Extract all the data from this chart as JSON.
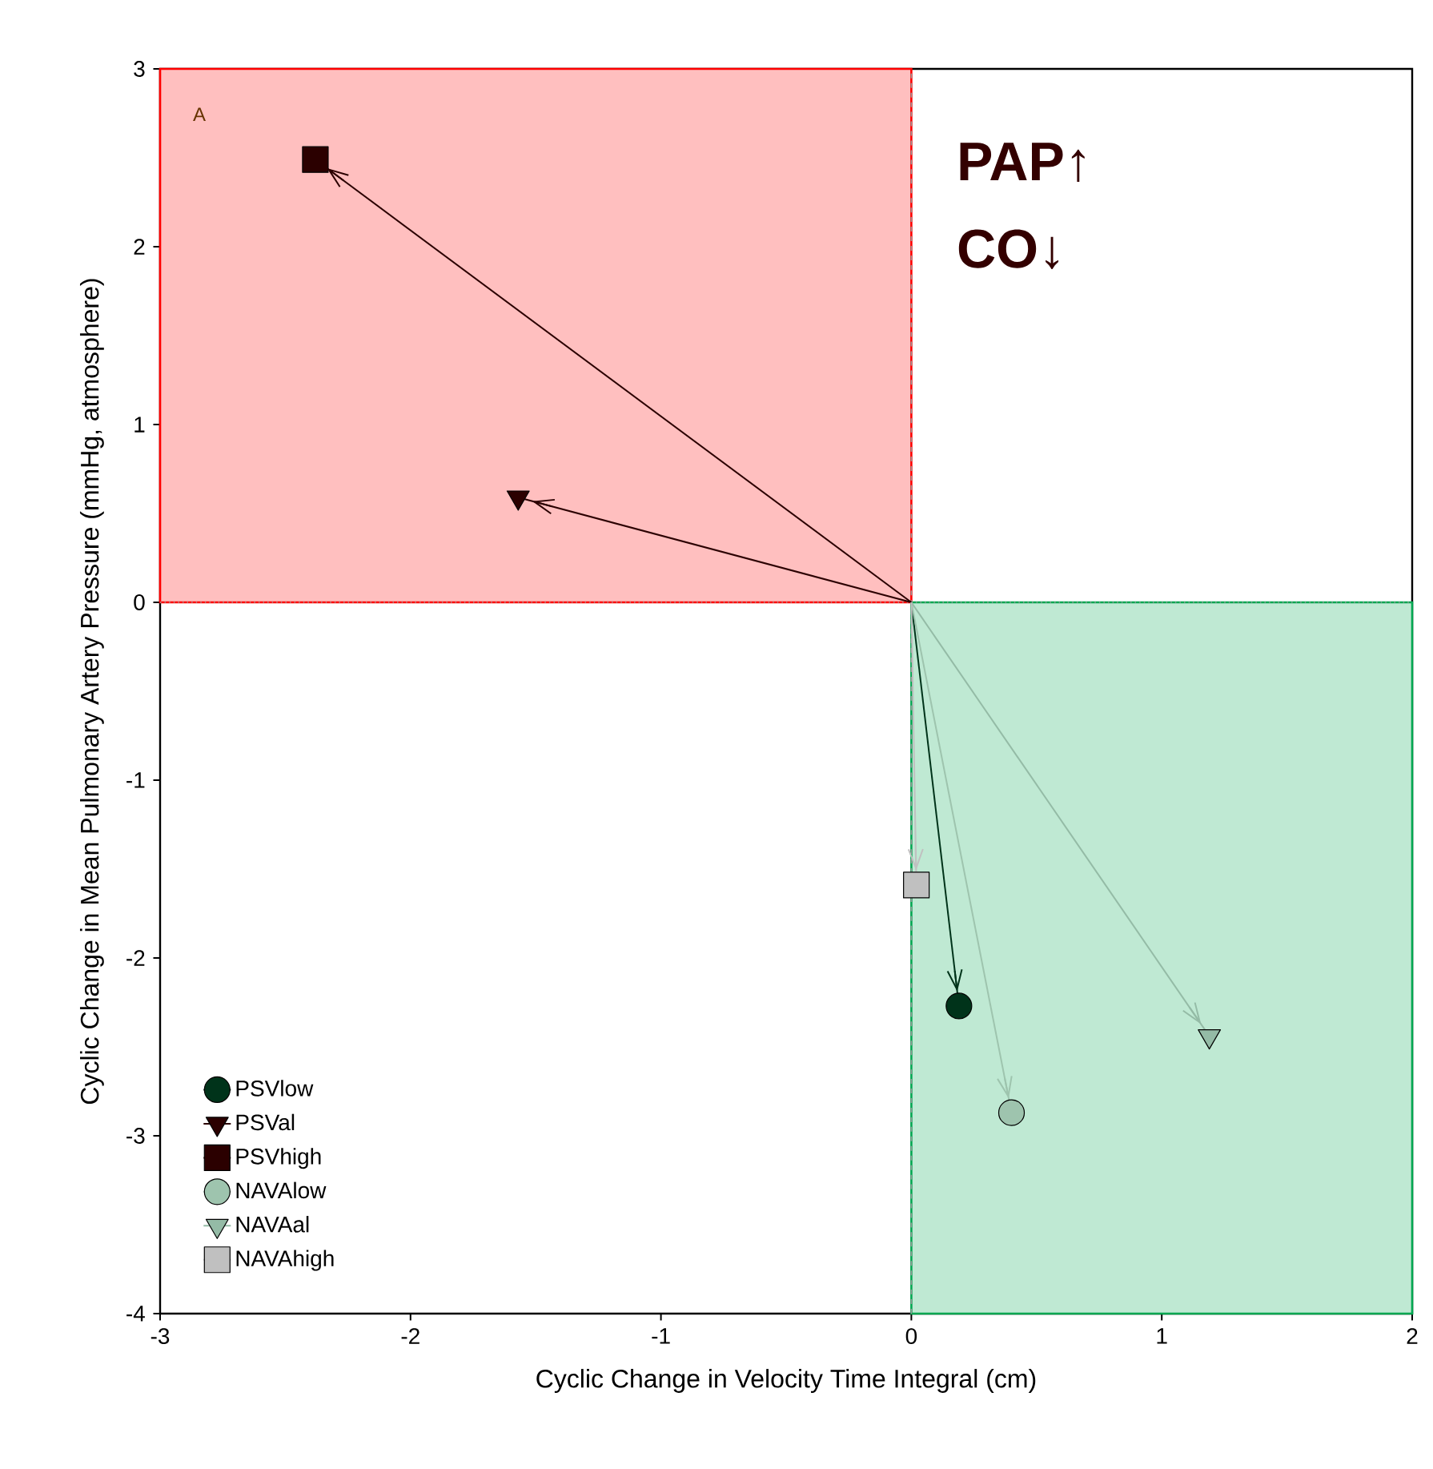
{
  "chart_data": {
    "type": "line",
    "xlabel": "Cyclic Change in Velocity Time Integral (cm)",
    "ylabel": "Cyclic Change in Mean Pulmonary Artery Pressure (mmHg, atmosphere)",
    "xlim": [
      -3,
      2
    ],
    "ylim": [
      -4,
      3
    ],
    "xticks": [
      -3,
      -2,
      -1,
      0,
      1,
      2
    ],
    "yticks": [
      -4,
      -3,
      -2,
      -1,
      0,
      1,
      2,
      3
    ],
    "legend": "bottom left",
    "series": [
      {
        "type": "area",
        "color": "#ffbfbf",
        "x": [
          -3,
          0
        ],
        "values": [
          3,
          3
        ]
      },
      {
        "type": "area",
        "color": "#bfe9d3",
        "x": [
          0,
          2
        ],
        "values": [
          -4,
          -4
        ]
      },
      {
        "name": "PSVlow",
        "color": "#00331a",
        "marker": "circle",
        "x": [
          0,
          0.19
        ],
        "values": [
          0,
          -2.27
        ]
      },
      {
        "name": "PSVal",
        "color": "#2b0000",
        "marker": "triangle",
        "x": [
          0,
          -1.57
        ],
        "values": [
          0,
          0.59
        ]
      },
      {
        "name": "PSVhigh",
        "color": "#2b0000",
        "marker": "square",
        "x": [
          0,
          -2.38
        ],
        "values": [
          0,
          2.49
        ]
      },
      {
        "name": "NAVAlow",
        "color": "#9ec4ae",
        "marker": "circle",
        "x": [
          0,
          0.4
        ],
        "values": [
          0,
          -2.87
        ]
      },
      {
        "name": "NAVAal",
        "color": "#94bba6",
        "marker": "triangle",
        "x": [
          0,
          1.19
        ],
        "values": [
          0,
          -2.44
        ]
      },
      {
        "name": "NAVAhigh",
        "color": "#c0c0c0",
        "marker": "square",
        "x": [
          0,
          0.02
        ],
        "values": [
          0,
          -1.59
        ]
      }
    ],
    "ref_lines": [
      {
        "axis": "x",
        "value": 0,
        "line_style": "dashed",
        "color": "#999999"
      },
      {
        "axis": "y",
        "value": 0,
        "line_style": "dotted",
        "color": "#999999"
      }
    ],
    "annotations": [
      "A",
      "PAP↑",
      "CO↓"
    ]
  }
}
